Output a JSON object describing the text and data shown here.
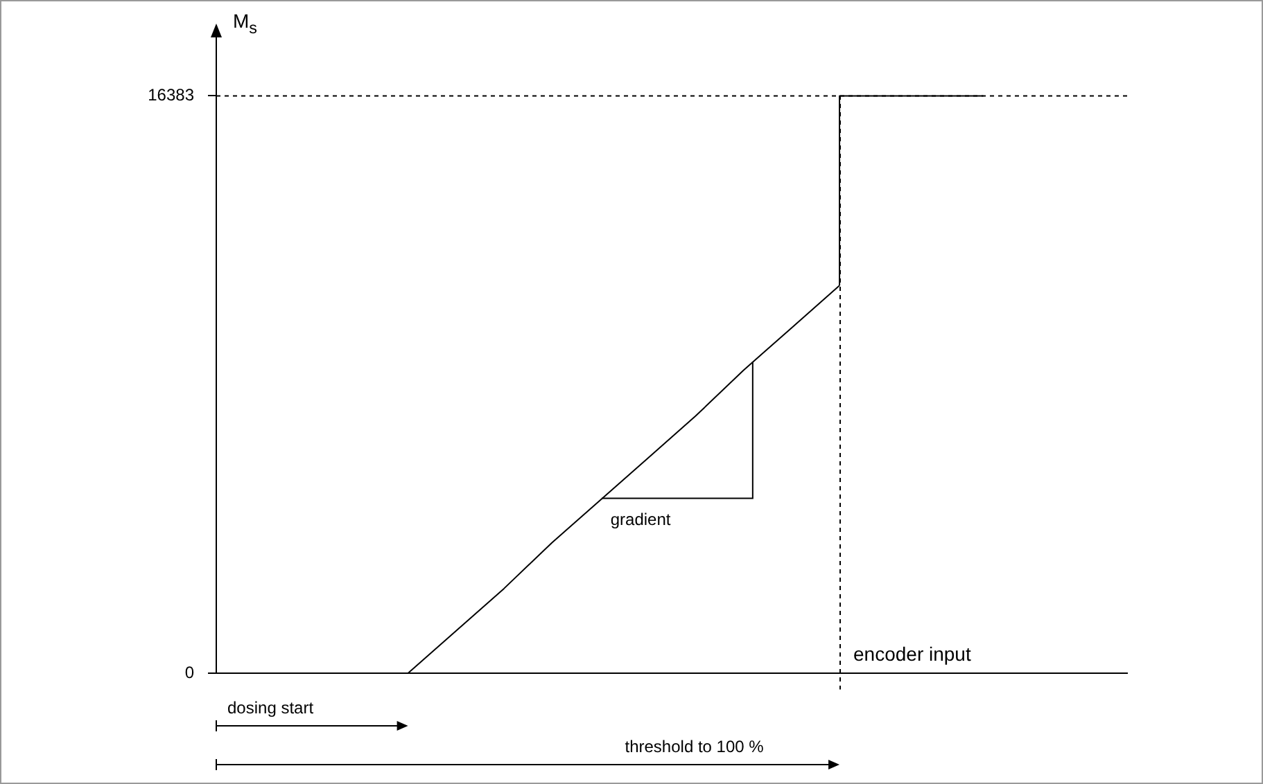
{
  "chart_data": {
    "type": "line",
    "ylabel": "M$_{s}$",
    "xlabel": "encoder input",
    "categories": [
      null,
      null,
      null,
      null,
      null,
      null,
      null,
      null,
      null,
      null,
      null,
      null,
      null,
      null,
      null,
      null,
      null,
      null,
      null,
      null
    ],
    "series": [
      {
        "color": "#000000",
        "values": [
          0,
          0,
          0,
          0,
          0,
          1200,
          2400,
          3700,
          4900,
          6100,
          7300,
          8600,
          9800,
          11000,
          null,
          null,
          null,
          null,
          null,
          null
        ]
      },
      {
        "type": "step",
        "color": "#000000",
        "values": [
          null,
          null,
          null,
          null,
          null,
          null,
          null,
          null,
          null,
          null,
          null,
          null,
          null,
          11000,
          16383,
          16383,
          16383,
          null,
          null,
          null
        ]
      }
    ],
    "ylim": [
      0,
      18200
    ],
    "yticks": [
      0,
      16383
    ],
    "tick_labels": "y",
    "marker": "none",
    "line_style": "solid",
    "ref_lines": [
      {
        "axis": "y",
        "value": 16383,
        "line_style": "dashed",
        "color": "#000000"
      }
    ],
    "annotations": [
      "gradient",
      "dosing start",
      "threshold to 100 %"
    ]
  }
}
